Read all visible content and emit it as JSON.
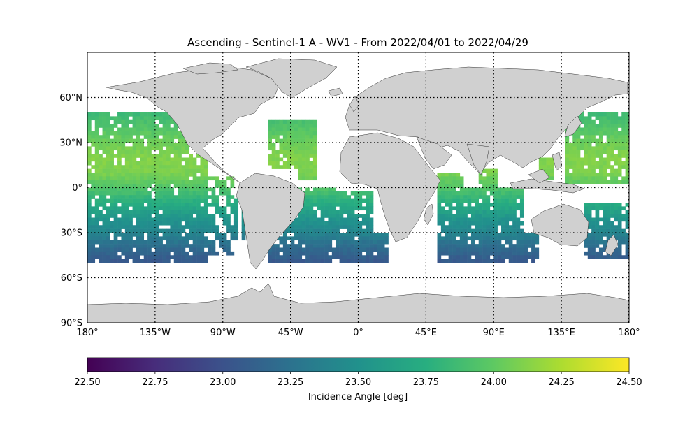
{
  "figure": {
    "title": "Ascending - Sentinel-1 A - WV1 - From 2022/04/01 to 2022/04/29"
  },
  "map": {
    "projection": "plate-carree",
    "lon_range": [
      -180,
      180
    ],
    "lat_range": [
      -90,
      90
    ],
    "y_ticks": [
      {
        "lat": 60,
        "label": "60°N"
      },
      {
        "lat": 30,
        "label": "30°N"
      },
      {
        "lat": 0,
        "label": "0°"
      },
      {
        "lat": -30,
        "label": "30°S"
      },
      {
        "lat": -60,
        "label": "60°S"
      },
      {
        "lat": -90,
        "label": "90°S"
      }
    ],
    "x_ticks": [
      {
        "lon": -180,
        "label": "180°"
      },
      {
        "lon": -135,
        "label": "135°W"
      },
      {
        "lon": -90,
        "label": "90°W"
      },
      {
        "lon": -45,
        "label": "45°W"
      },
      {
        "lon": 0,
        "label": "0°"
      },
      {
        "lon": 45,
        "label": "45°E"
      },
      {
        "lon": 90,
        "label": "90°E"
      },
      {
        "lon": 135,
        "label": "135°E"
      },
      {
        "lon": 180,
        "label": "180°"
      }
    ],
    "gridlines": "dotted",
    "land_color": "#d0d0d0",
    "ocean_color": "#ffffff"
  },
  "colorbar": {
    "label": "Incidence Angle [deg]",
    "colormap": "viridis",
    "range": [
      22.5,
      24.5
    ],
    "ticks": [
      "22.50",
      "22.75",
      "23.00",
      "23.25",
      "23.50",
      "23.75",
      "24.00",
      "24.25",
      "24.50"
    ]
  },
  "chart_data": {
    "type": "heatmap",
    "title": "Ascending - Sentinel-1 A - WV1 - From 2022/04/01 to 2022/04/29",
    "value_label": "Incidence Angle [deg]",
    "value_range": [
      22.5,
      24.5
    ],
    "lat_lon_swath_profile": [
      {
        "lat": 50,
        "value": 23.85
      },
      {
        "lat": 40,
        "value": 23.95
      },
      {
        "lat": 30,
        "value": 24.05
      },
      {
        "lat": 20,
        "value": 24.12
      },
      {
        "lat": 10,
        "value": 24.1
      },
      {
        "lat": 0,
        "value": 23.95
      },
      {
        "lat": -10,
        "value": 23.75
      },
      {
        "lat": -20,
        "value": 23.55
      },
      {
        "lat": -30,
        "value": 23.4
      },
      {
        "lat": -40,
        "value": 23.2
      },
      {
        "lat": -50,
        "value": 23.05
      }
    ],
    "coverage": "Sentinel-1 A WV1 ascending imagettes over open ocean between ~50°S and ~50°N"
  }
}
